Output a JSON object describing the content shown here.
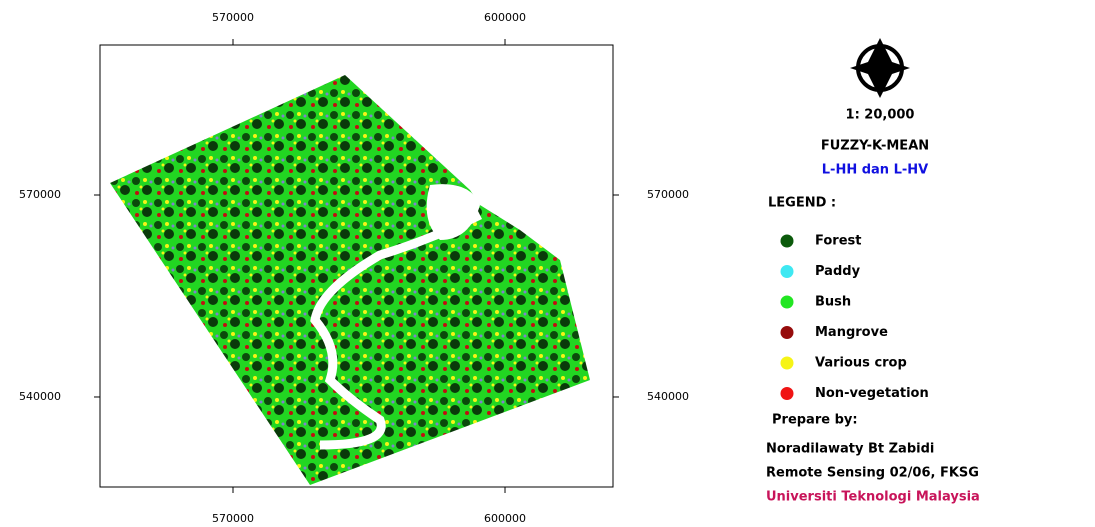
{
  "map": {
    "xlim": [
      555330,
      611910
    ],
    "ylim": [
      526630,
      592280
    ],
    "xticks": [
      570000,
      600000
    ],
    "yticks": [
      570000,
      540000
    ]
  },
  "scale": "1: 20,000",
  "title": "FUZZY-K-MEAN",
  "subtitle": "L-HH dan L-HV",
  "legend": {
    "title": "LEGEND :",
    "items": [
      {
        "label": "Forest",
        "color": "#0b5a0b"
      },
      {
        "label": "Paddy",
        "color": "#3ee8f2"
      },
      {
        "label": "Bush",
        "color": "#22e622"
      },
      {
        "label": "Mangrove",
        "color": "#960c0c"
      },
      {
        "label": "Various crop",
        "color": "#f6f416"
      },
      {
        "label": "Non-vegetation",
        "color": "#f01414"
      }
    ]
  },
  "credits": {
    "heading": "Prepare by:",
    "author": "Noradilawaty Bt Zabidi",
    "course": "Remote Sensing 02/06, FKSG",
    "university": "Universiti Teknologi Malaysia"
  }
}
